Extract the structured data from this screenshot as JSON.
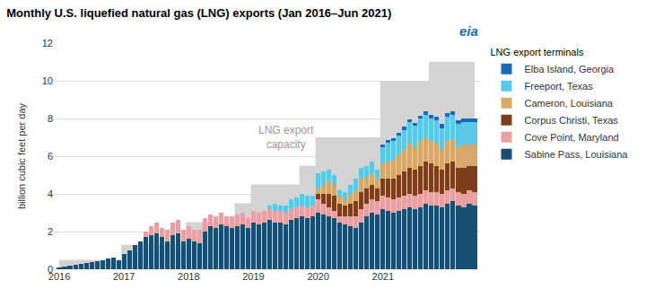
{
  "chart_data": {
    "type": "bar",
    "title": "Monthly U.S. liquefied natural gas (LNG) exports (Jan 2016–Jun 2021)",
    "ylabel": "billion cubic feet per day",
    "legend_title": "LNG export terminals",
    "legend": "right",
    "stacked": true,
    "grid": true,
    "ylim": [
      0,
      12
    ],
    "yticks": [
      0,
      2,
      4,
      6,
      8,
      10,
      12
    ],
    "categories": [
      "2016",
      null,
      null,
      null,
      null,
      null,
      null,
      null,
      null,
      null,
      null,
      null,
      "2017",
      null,
      null,
      null,
      null,
      null,
      null,
      null,
      null,
      null,
      null,
      null,
      "2018",
      null,
      null,
      null,
      null,
      null,
      null,
      null,
      null,
      null,
      null,
      null,
      "2019",
      null,
      null,
      null,
      null,
      null,
      null,
      null,
      null,
      null,
      null,
      null,
      "2020",
      null,
      null,
      null,
      null,
      null,
      null,
      null,
      null,
      null,
      null,
      null,
      "2021",
      null,
      null,
      null,
      null,
      null,
      null,
      null,
      null,
      null,
      null,
      null,
      null,
      null,
      null,
      null,
      null,
      null
    ],
    "annotations": [
      {
        "text": "LNG export\ncapacity",
        "x": 42,
        "y": 7.0
      },
      {
        "text": "eia"
      }
    ],
    "series": [
      {
        "type": "area",
        "line_style": "step",
        "color": "#d3d3d3",
        "values": [
          0.5,
          0.5,
          0.5,
          0.5,
          0.5,
          0.5,
          0.5,
          0.5,
          0.5,
          0.5,
          0.5,
          0.5,
          1.3,
          1.3,
          1.3,
          1.3,
          1.3,
          1.3,
          1.3,
          1.3,
          1.3,
          1.3,
          1.3,
          1.3,
          2.5,
          2.5,
          2.5,
          2.5,
          2.5,
          2.5,
          2.5,
          2.5,
          2.5,
          3.5,
          3.5,
          3.5,
          4.5,
          4.5,
          4.5,
          4.5,
          4.5,
          4.5,
          4.5,
          4.5,
          4.5,
          5.5,
          5.5,
          5.5,
          7.0,
          7.0,
          7.0,
          7.0,
          7.0,
          7.0,
          7.0,
          7.0,
          7.0,
          7.0,
          7.0,
          7.0,
          10.0,
          10.0,
          10.0,
          10.0,
          10.0,
          10.0,
          10.0,
          10.0,
          10.0,
          11.0,
          11.0,
          11.0,
          11.0,
          11.0,
          11.0,
          11.0,
          11.0,
          11.0
        ]
      },
      {
        "name": "Sabine Pass, Louisiana",
        "color": "#1a4f72",
        "values": [
          0.1,
          0.15,
          0.2,
          0.25,
          0.3,
          0.35,
          0.4,
          0.45,
          0.5,
          0.55,
          0.6,
          0.5,
          0.8,
          1.0,
          1.3,
          1.5,
          1.7,
          1.8,
          1.9,
          1.7,
          1.5,
          1.8,
          1.9,
          1.5,
          1.6,
          1.5,
          1.4,
          2.0,
          2.3,
          2.2,
          2.4,
          2.3,
          2.2,
          2.3,
          2.4,
          2.2,
          2.5,
          2.4,
          2.5,
          2.6,
          2.5,
          2.5,
          2.4,
          2.6,
          2.7,
          2.8,
          2.7,
          2.8,
          3.0,
          2.9,
          2.8,
          2.7,
          2.5,
          2.4,
          2.3,
          2.2,
          2.5,
          2.8,
          3.0,
          2.9,
          3.2,
          3.1,
          3.0,
          3.1,
          3.2,
          3.3,
          3.2,
          3.3,
          3.5,
          3.4,
          3.4,
          3.3,
          3.5,
          3.6,
          3.4,
          3.3,
          3.5,
          3.4
        ]
      },
      {
        "name": "Cove Point, Maryland",
        "color": "#e8a0a0",
        "values": [
          0.0,
          0.0,
          0.0,
          0.0,
          0.0,
          0.0,
          0.0,
          0.0,
          0.0,
          0.0,
          0.0,
          0.0,
          0.0,
          0.0,
          0.0,
          0.0,
          0.3,
          0.5,
          0.6,
          0.5,
          0.6,
          0.7,
          0.7,
          0.6,
          0.7,
          0.6,
          0.7,
          0.7,
          0.6,
          0.6,
          0.6,
          0.5,
          0.6,
          0.6,
          0.6,
          0.5,
          0.6,
          0.6,
          0.6,
          0.6,
          0.6,
          0.6,
          0.6,
          0.6,
          0.6,
          0.6,
          0.6,
          0.6,
          0.7,
          0.6,
          0.5,
          0.4,
          0.3,
          0.4,
          0.5,
          0.6,
          0.7,
          0.7,
          0.7,
          0.7,
          0.7,
          0.7,
          0.7,
          0.7,
          0.7,
          0.7,
          0.7,
          0.7,
          0.7,
          0.7,
          0.7,
          0.7,
          0.7,
          0.7,
          0.7,
          0.7,
          0.7,
          0.7
        ]
      },
      {
        "name": "Corpus Christi, Texas",
        "color": "#7b3f1e",
        "values": [
          0.0,
          0.0,
          0.0,
          0.0,
          0.0,
          0.0,
          0.0,
          0.0,
          0.0,
          0.0,
          0.0,
          0.0,
          0.0,
          0.0,
          0.0,
          0.0,
          0.0,
          0.0,
          0.0,
          0.0,
          0.0,
          0.0,
          0.0,
          0.0,
          0.0,
          0.0,
          0.0,
          0.0,
          0.0,
          0.0,
          0.0,
          0.0,
          0.0,
          0.0,
          0.0,
          0.0,
          0.0,
          0.0,
          0.0,
          0.0,
          0.0,
          0.0,
          0.0,
          0.0,
          0.0,
          0.0,
          0.0,
          0.0,
          0.3,
          0.5,
          0.7,
          0.8,
          0.7,
          0.6,
          0.7,
          0.8,
          0.9,
          0.8,
          0.8,
          0.7,
          0.9,
          1.0,
          1.1,
          1.2,
          1.3,
          1.4,
          1.4,
          1.5,
          1.5,
          1.5,
          1.4,
          1.3,
          1.4,
          1.4,
          1.3,
          1.4,
          1.3,
          1.4
        ]
      },
      {
        "name": "Cameron, Louisiana",
        "color": "#d4a96a",
        "values": [
          0.0,
          0.0,
          0.0,
          0.0,
          0.0,
          0.0,
          0.0,
          0.0,
          0.0,
          0.0,
          0.0,
          0.0,
          0.0,
          0.0,
          0.0,
          0.0,
          0.0,
          0.0,
          0.0,
          0.0,
          0.0,
          0.0,
          0.0,
          0.0,
          0.0,
          0.0,
          0.0,
          0.0,
          0.0,
          0.0,
          0.0,
          0.0,
          0.0,
          0.0,
          0.0,
          0.0,
          0.0,
          0.0,
          0.0,
          0.0,
          0.0,
          0.0,
          0.0,
          0.0,
          0.0,
          0.0,
          0.0,
          0.0,
          0.3,
          0.5,
          0.7,
          0.6,
          0.4,
          0.3,
          0.5,
          0.6,
          0.7,
          0.6,
          0.6,
          0.5,
          0.8,
          0.9,
          1.0,
          1.1,
          1.2,
          1.3,
          1.2,
          1.3,
          1.3,
          1.2,
          1.2,
          1.1,
          1.2,
          1.2,
          1.1,
          1.2,
          1.1,
          1.1
        ]
      },
      {
        "name": "Freeport, Texas",
        "color": "#5bc8e8",
        "values": [
          0.0,
          0.0,
          0.0,
          0.0,
          0.0,
          0.0,
          0.0,
          0.0,
          0.0,
          0.0,
          0.0,
          0.0,
          0.0,
          0.0,
          0.0,
          0.0,
          0.0,
          0.0,
          0.0,
          0.0,
          0.0,
          0.0,
          0.0,
          0.0,
          0.0,
          0.0,
          0.0,
          0.0,
          0.0,
          0.0,
          0.0,
          0.0,
          0.0,
          0.0,
          0.0,
          0.0,
          0.0,
          0.0,
          0.0,
          0.2,
          0.4,
          0.3,
          0.4,
          0.5,
          0.5,
          0.6,
          0.6,
          0.5,
          0.8,
          0.7,
          0.6,
          0.5,
          0.3,
          0.4,
          0.5,
          0.6,
          0.6,
          0.6,
          0.6,
          0.5,
          0.9,
          1.0,
          1.0,
          1.0,
          1.0,
          1.1,
          1.1,
          1.2,
          1.2,
          1.2,
          1.2,
          1.1,
          1.3,
          1.3,
          1.2,
          1.2,
          1.2,
          1.2
        ]
      },
      {
        "name": "Elba Island, Georgia",
        "color": "#1a6bb5",
        "values": [
          0.0,
          0.0,
          0.0,
          0.0,
          0.0,
          0.0,
          0.0,
          0.0,
          0.0,
          0.0,
          0.0,
          0.0,
          0.0,
          0.0,
          0.0,
          0.0,
          0.0,
          0.0,
          0.0,
          0.0,
          0.0,
          0.0,
          0.0,
          0.0,
          0.0,
          0.0,
          0.0,
          0.0,
          0.0,
          0.0,
          0.0,
          0.0,
          0.0,
          0.0,
          0.0,
          0.0,
          0.0,
          0.0,
          0.0,
          0.0,
          0.0,
          0.0,
          0.0,
          0.0,
          0.0,
          0.0,
          0.0,
          0.0,
          0.0,
          0.0,
          0.0,
          0.0,
          0.0,
          0.0,
          0.0,
          0.0,
          0.0,
          0.0,
          0.0,
          0.0,
          0.1,
          0.15,
          0.15,
          0.15,
          0.15,
          0.15,
          0.15,
          0.15,
          0.2,
          0.2,
          0.2,
          0.2,
          0.2,
          0.2,
          0.2,
          0.2,
          0.2,
          0.2
        ]
      }
    ]
  }
}
